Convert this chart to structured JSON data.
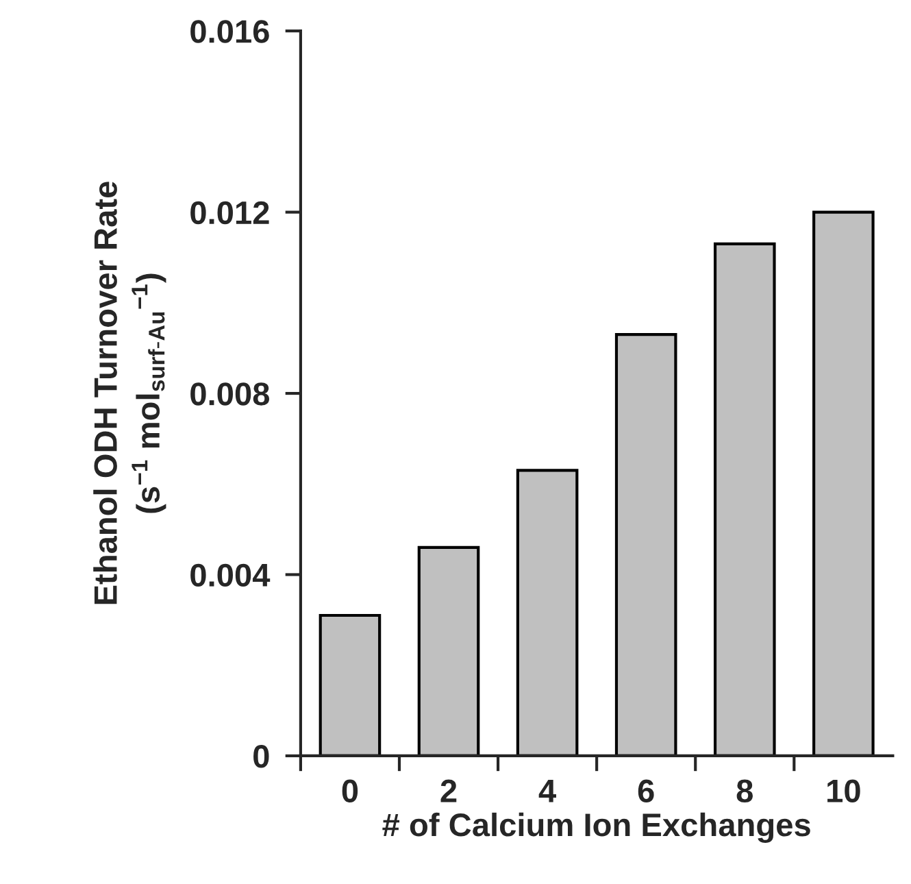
{
  "chart_data": {
    "type": "bar",
    "xlabel": "# of Calcium Ion Exchanges",
    "ylabel": "Ethanol ODH Turnover Rate\n(s$^{−1}$ mol$_{surf-Au}$$^{−1}$)",
    "categories": [
      "0",
      "2",
      "4",
      "6",
      "8",
      "10"
    ],
    "values": [
      0.0031,
      0.0046,
      0.0063,
      0.0093,
      0.0113,
      0.012
    ],
    "color": "#c0c0c0",
    "ylim": [
      0,
      0.016
    ],
    "yticks": [
      0,
      0.004,
      0.008,
      0.012,
      0.016
    ],
    "grid": false,
    "legend": false
  }
}
